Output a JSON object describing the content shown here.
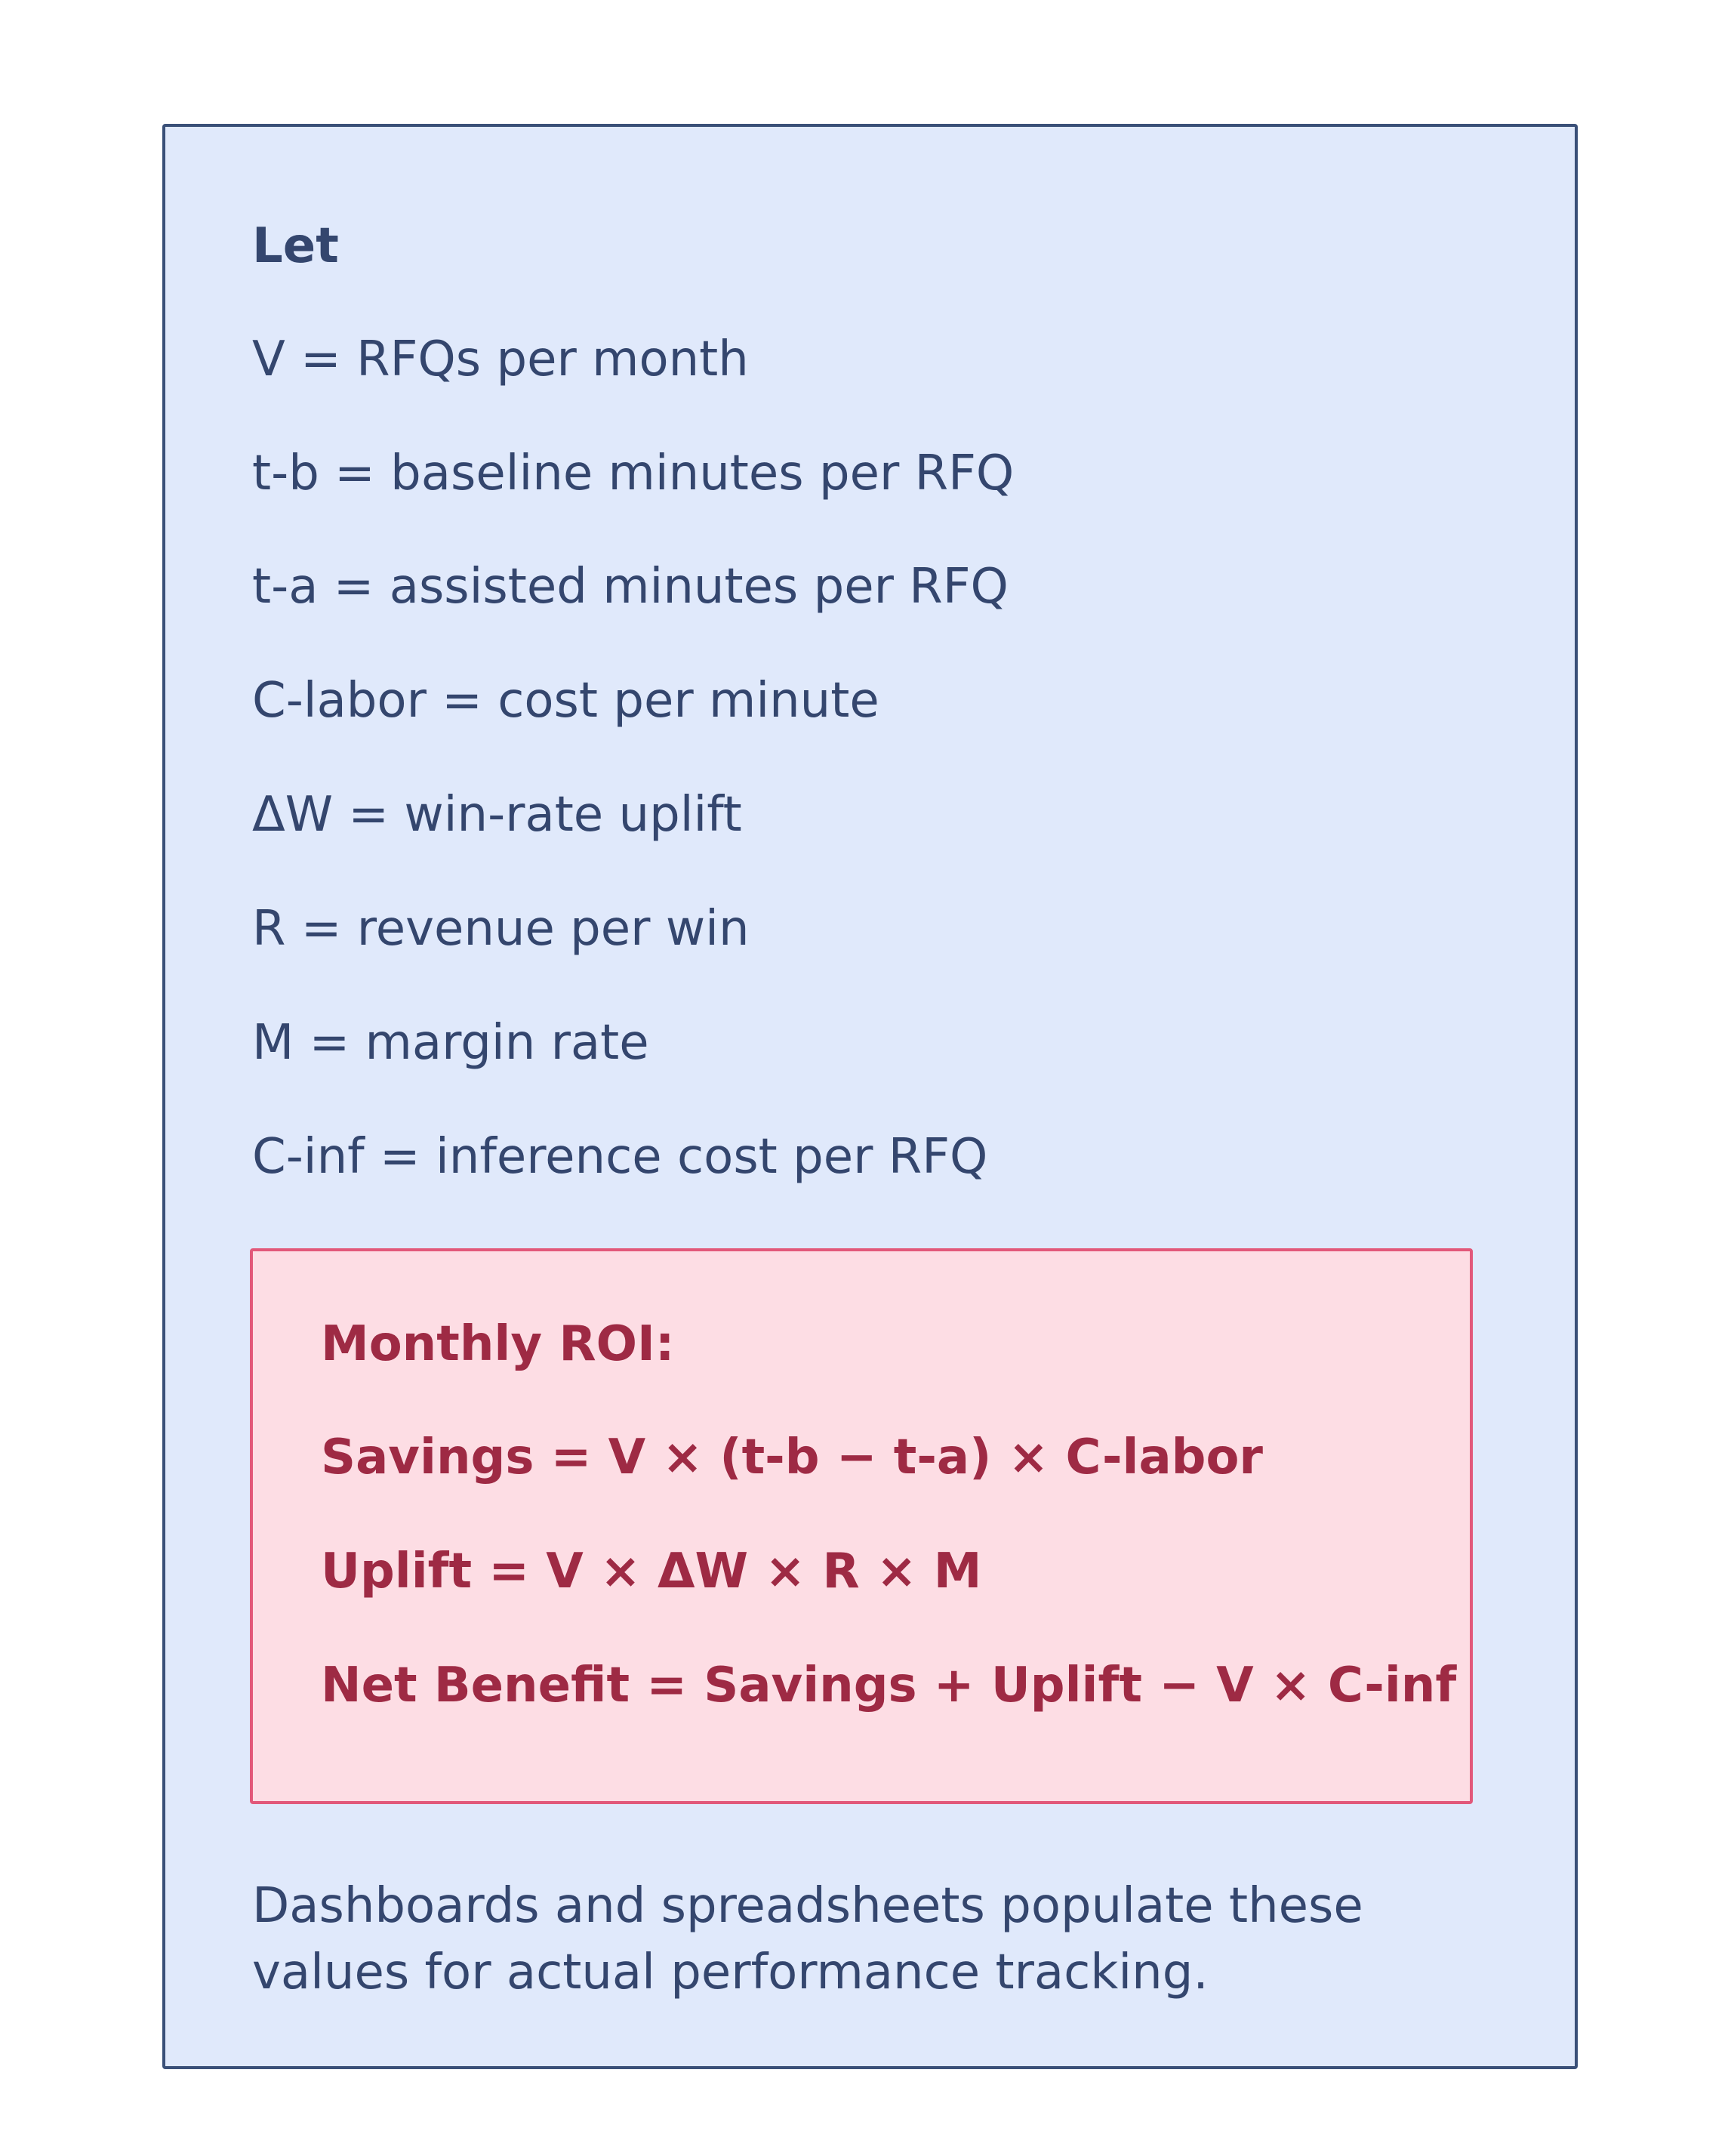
{
  "panel": {
    "intro": "Let",
    "definitions": [
      "V = RFQs per month",
      "t-b = baseline minutes per RFQ",
      "t-a = assisted minutes per RFQ",
      "C-labor = cost per minute",
      "ΔW = win-rate uplift",
      "R = revenue per win",
      "M = margin rate",
      "C-inf = inference cost per RFQ"
    ],
    "formulas": {
      "title": "Monthly ROI:",
      "lines": [
        "Savings = V × (t-b − t-a) × C-labor",
        "Uplift = V × ΔW × R × M",
        "Net Benefit = Savings + Uplift − V × C-inf"
      ]
    },
    "footnote": "Dashboards and spreadsheets populate these values for actual performance tracking."
  },
  "colors": {
    "panel_background": "#e0e9fb",
    "panel_border": "#3a5078",
    "text": "#34466e",
    "formula_background": "#fddde4",
    "formula_border": "#e2587a",
    "formula_text": "#9e2a44"
  }
}
